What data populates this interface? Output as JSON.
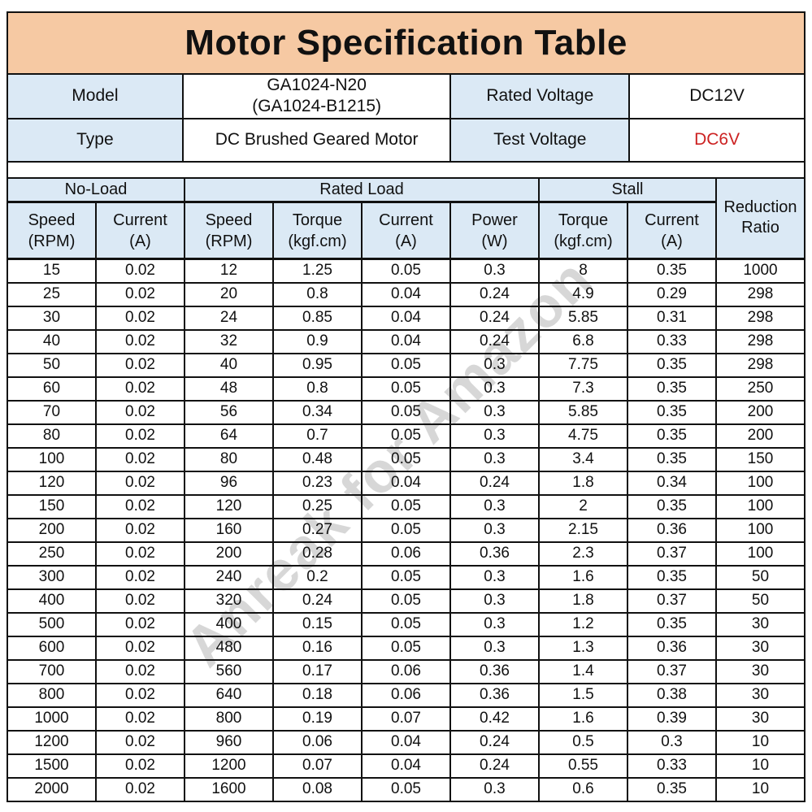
{
  "title": "Motor Specification Table",
  "watermark": {
    "text": "Anreak for Amazon",
    "color": "rgba(150,150,150,0.38)"
  },
  "colors": {
    "title_background": "#f6c9a3",
    "header_background": "#dbe9f5",
    "border": "#111111",
    "test_voltage_red": "#cc2222"
  },
  "info": {
    "rows": [
      {
        "label": "Model",
        "value": "GA1024-N20\n(GA1024-B1215)",
        "label2": "Rated Voltage",
        "value2": "DC12V"
      },
      {
        "label": "Type",
        "value": "DC Brushed Geared Motor",
        "label2": "Test Voltage",
        "value2": "DC6V"
      }
    ]
  },
  "spec_table": {
    "groups": [
      {
        "label": "No-Load",
        "span": 2
      },
      {
        "label": "Rated Load",
        "span": 4
      },
      {
        "label": "Stall",
        "span": 2
      }
    ],
    "corner_header": "Reduction\nRatio",
    "columns": [
      "Speed\n(RPM)",
      "Current\n(A)",
      "Speed\n(RPM)",
      "Torque\n(kgf.cm)",
      "Current\n(A)",
      "Power\n(W)",
      "Torque\n(kgf.cm)",
      "Current\n(A)"
    ],
    "rows": [
      [
        "15",
        "0.02",
        "12",
        "1.25",
        "0.05",
        "0.3",
        "8",
        "0.35",
        "1000"
      ],
      [
        "25",
        "0.02",
        "20",
        "0.8",
        "0.04",
        "0.24",
        "4.9",
        "0.29",
        "298"
      ],
      [
        "30",
        "0.02",
        "24",
        "0.85",
        "0.04",
        "0.24",
        "5.85",
        "0.31",
        "298"
      ],
      [
        "40",
        "0.02",
        "32",
        "0.9",
        "0.04",
        "0.24",
        "6.8",
        "0.33",
        "298"
      ],
      [
        "50",
        "0.02",
        "40",
        "0.95",
        "0.05",
        "0.3",
        "7.75",
        "0.35",
        "298"
      ],
      [
        "60",
        "0.02",
        "48",
        "0.8",
        "0.05",
        "0.3",
        "7.3",
        "0.35",
        "250"
      ],
      [
        "70",
        "0.02",
        "56",
        "0.34",
        "0.05",
        "0.3",
        "5.85",
        "0.35",
        "200"
      ],
      [
        "80",
        "0.02",
        "64",
        "0.7",
        "0.05",
        "0.3",
        "4.75",
        "0.35",
        "200"
      ],
      [
        "100",
        "0.02",
        "80",
        "0.48",
        "0.05",
        "0.3",
        "3.4",
        "0.35",
        "150"
      ],
      [
        "120",
        "0.02",
        "96",
        "0.23",
        "0.04",
        "0.24",
        "1.8",
        "0.34",
        "100"
      ],
      [
        "150",
        "0.02",
        "120",
        "0.25",
        "0.05",
        "0.3",
        "2",
        "0.35",
        "100"
      ],
      [
        "200",
        "0.02",
        "160",
        "0.27",
        "0.05",
        "0.3",
        "2.15",
        "0.36",
        "100"
      ],
      [
        "250",
        "0.02",
        "200",
        "0.28",
        "0.06",
        "0.36",
        "2.3",
        "0.37",
        "100"
      ],
      [
        "300",
        "0.02",
        "240",
        "0.2",
        "0.05",
        "0.3",
        "1.6",
        "0.35",
        "50"
      ],
      [
        "400",
        "0.02",
        "320",
        "0.24",
        "0.05",
        "0.3",
        "1.8",
        "0.37",
        "50"
      ],
      [
        "500",
        "0.02",
        "400",
        "0.15",
        "0.05",
        "0.3",
        "1.2",
        "0.35",
        "30"
      ],
      [
        "600",
        "0.02",
        "480",
        "0.16",
        "0.05",
        "0.3",
        "1.3",
        "0.36",
        "30"
      ],
      [
        "700",
        "0.02",
        "560",
        "0.17",
        "0.06",
        "0.36",
        "1.4",
        "0.37",
        "30"
      ],
      [
        "800",
        "0.02",
        "640",
        "0.18",
        "0.06",
        "0.36",
        "1.5",
        "0.38",
        "30"
      ],
      [
        "1000",
        "0.02",
        "800",
        "0.19",
        "0.07",
        "0.42",
        "1.6",
        "0.39",
        "30"
      ],
      [
        "1200",
        "0.02",
        "960",
        "0.06",
        "0.04",
        "0.24",
        "0.5",
        "0.3",
        "10"
      ],
      [
        "1500",
        "0.02",
        "1200",
        "0.07",
        "0.04",
        "0.24",
        "0.55",
        "0.33",
        "10"
      ],
      [
        "2000",
        "0.02",
        "1600",
        "0.08",
        "0.05",
        "0.3",
        "0.6",
        "0.35",
        "10"
      ]
    ]
  }
}
